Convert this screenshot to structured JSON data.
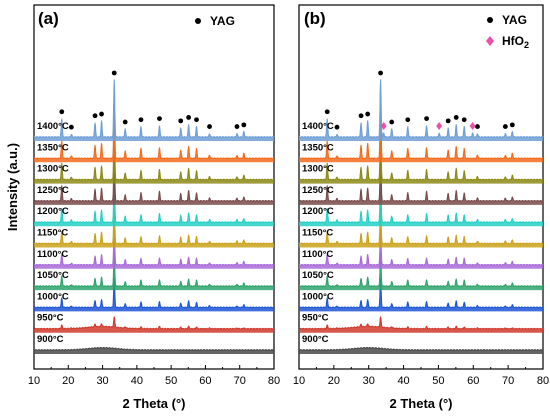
{
  "chart_data": [
    {
      "type": "line",
      "panel_label": "(a)",
      "xlabel": "2 Theta (°)",
      "ylabel": "Intensity (a.u.)",
      "xlim": [
        10,
        80
      ],
      "xticks": [
        10,
        20,
        30,
        40,
        50,
        60,
        70,
        80
      ],
      "legend": [
        {
          "label": "YAG",
          "marker": "circle",
          "color": "#000000"
        }
      ],
      "legend_position": "top-right",
      "series": [
        {
          "name": "900°C",
          "color": "#4a4a4a",
          "phase": "amorphous"
        },
        {
          "name": "950°C",
          "color": "#d0392b",
          "phase": "onset"
        },
        {
          "name": "1000°C",
          "color": "#1f55d6",
          "phase": "YAG"
        },
        {
          "name": "1050°C",
          "color": "#2fa36b",
          "phase": "YAG"
        },
        {
          "name": "1100°C",
          "color": "#a86ad8",
          "phase": "YAG"
        },
        {
          "name": "1150°C",
          "color": "#c9a21a",
          "phase": "YAG"
        },
        {
          "name": "1200°C",
          "color": "#24cfc6",
          "phase": "YAG"
        },
        {
          "name": "1250°C",
          "color": "#7a4a4a",
          "phase": "YAG"
        },
        {
          "name": "1300°C",
          "color": "#8c8a17",
          "phase": "YAG"
        },
        {
          "name": "1350°C",
          "color": "#f26b1d",
          "phase": "YAG"
        },
        {
          "name": "1400°C",
          "color": "#6f9fd6",
          "phase": "YAG"
        }
      ],
      "yag_peaks_2theta": [
        18.1,
        20.9,
        27.8,
        29.7,
        33.4,
        36.6,
        41.2,
        46.6,
        52.8,
        55.1,
        57.4,
        61.2,
        69.2,
        71.2
      ],
      "yag_peak_rel_intensity": [
        0.32,
        0.05,
        0.25,
        0.28,
        1.0,
        0.14,
        0.18,
        0.2,
        0.16,
        0.22,
        0.18,
        0.06,
        0.06,
        0.09
      ],
      "hfo2_peaks_2theta": []
    },
    {
      "type": "line",
      "panel_label": "(b)",
      "xlabel": "2 Theta (°)",
      "ylabel": "",
      "xlim": [
        10,
        80
      ],
      "xticks": [
        10,
        20,
        30,
        40,
        50,
        60,
        70,
        80
      ],
      "legend": [
        {
          "label": "YAG",
          "marker": "circle",
          "color": "#000000"
        },
        {
          "label": "HfO",
          "subscript": "2",
          "marker": "diamond",
          "color": "#ee4fa8"
        }
      ],
      "legend_position": "top-right",
      "series": [
        {
          "name": "900°C",
          "color": "#4a4a4a",
          "phase": "amorphous"
        },
        {
          "name": "950°C",
          "color": "#d0392b",
          "phase": "onset"
        },
        {
          "name": "1000°C",
          "color": "#1f55d6",
          "phase": "YAG"
        },
        {
          "name": "1050°C",
          "color": "#2fa36b",
          "phase": "YAG"
        },
        {
          "name": "1100°C",
          "color": "#a86ad8",
          "phase": "YAG"
        },
        {
          "name": "1150°C",
          "color": "#c9a21a",
          "phase": "YAG"
        },
        {
          "name": "1200°C",
          "color": "#24cfc6",
          "phase": "YAG"
        },
        {
          "name": "1250°C",
          "color": "#7a4a4a",
          "phase": "YAG"
        },
        {
          "name": "1300°C",
          "color": "#8c8a17",
          "phase": "YAG"
        },
        {
          "name": "1350°C",
          "color": "#f26b1d",
          "phase": "YAG"
        },
        {
          "name": "1400°C",
          "color": "#6f9fd6",
          "phase": "YAG+HfO2"
        }
      ],
      "yag_peaks_2theta": [
        18.1,
        20.9,
        27.8,
        29.7,
        33.4,
        36.6,
        41.2,
        46.6,
        52.8,
        55.1,
        57.4,
        61.2,
        69.2,
        71.2
      ],
      "yag_peak_rel_intensity": [
        0.32,
        0.05,
        0.25,
        0.28,
        1.0,
        0.14,
        0.18,
        0.2,
        0.16,
        0.22,
        0.18,
        0.06,
        0.06,
        0.09
      ],
      "hfo2_peaks_2theta": [
        34.3,
        50.2,
        59.8
      ]
    }
  ]
}
